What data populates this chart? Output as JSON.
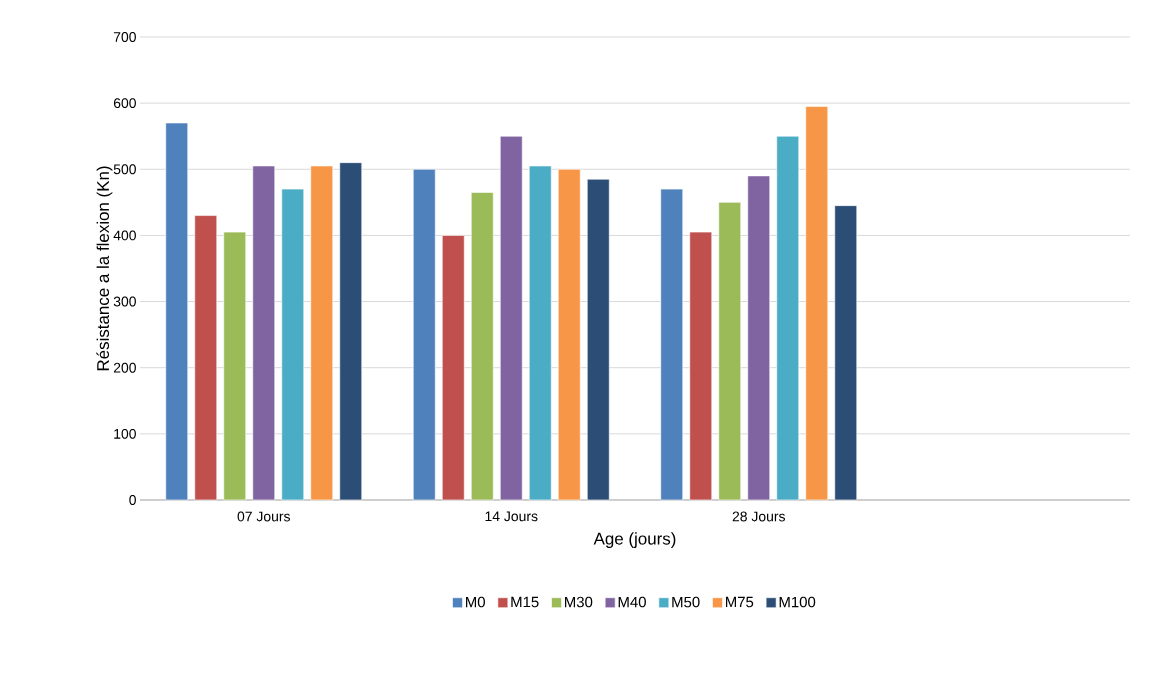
{
  "chart_data": {
    "type": "bar",
    "xlabel": "Age (jours)",
    "ylabel": "Résistance a la flexion (Kn)",
    "categories": [
      "07 Jours",
      "14 Jours",
      "28 Jours",
      null
    ],
    "series": [
      {
        "name": "M0",
        "color": "#4f81bd",
        "values": [
          570,
          500,
          470,
          null
        ]
      },
      {
        "name": "M15",
        "color": "#c0504d",
        "values": [
          430,
          400,
          405,
          null
        ]
      },
      {
        "name": "M30",
        "color": "#9bbb59",
        "values": [
          405,
          465,
          450,
          null
        ]
      },
      {
        "name": "M40",
        "color": "#8064a2",
        "values": [
          505,
          550,
          490,
          null
        ]
      },
      {
        "name": "M50",
        "color": "#4bacc6",
        "values": [
          470,
          505,
          550,
          null
        ]
      },
      {
        "name": "M75",
        "color": "#f79646",
        "values": [
          505,
          500,
          595,
          null
        ]
      },
      {
        "name": "M100",
        "color": "#2c4d75",
        "values": [
          510,
          485,
          445,
          null
        ]
      }
    ],
    "ylim": [
      0,
      700
    ],
    "yticks": [
      0,
      100,
      200,
      300,
      400,
      500,
      600,
      700
    ],
    "grid": "y",
    "legend": "bottom"
  }
}
